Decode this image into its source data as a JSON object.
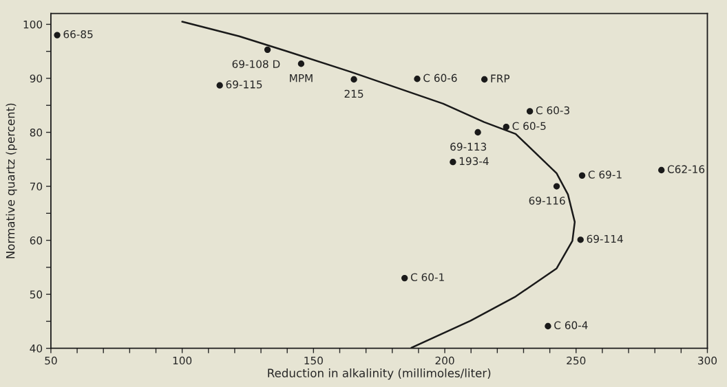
{
  "chart_data": {
    "type": "scatter",
    "xlabel": "Reduction in alkalinity (millimoles/liter)",
    "ylabel": "Normative quartz (percent)",
    "xlim": [
      50,
      300
    ],
    "ylim": [
      40,
      102
    ],
    "xticks": [
      50,
      {
        "value": 60,
        "label": null
      },
      {
        "value": 70,
        "label": null
      },
      {
        "value": 80,
        "label": null
      },
      {
        "value": 90,
        "label": null
      },
      100,
      {
        "value": 110,
        "label": null
      },
      {
        "value": 120,
        "label": null
      },
      {
        "value": 130,
        "label": null
      },
      {
        "value": 140,
        "label": null
      },
      150,
      {
        "value": 160,
        "label": null
      },
      {
        "value": 170,
        "label": null
      },
      {
        "value": 180,
        "label": null
      },
      {
        "value": 190,
        "label": null
      },
      200,
      {
        "value": 210,
        "label": null
      },
      {
        "value": 220,
        "label": null
      },
      {
        "value": 230,
        "label": null
      },
      {
        "value": 240,
        "label": null
      },
      250,
      {
        "value": 260,
        "label": null
      },
      {
        "value": 270,
        "label": null
      },
      {
        "value": 280,
        "label": null
      },
      {
        "value": 290,
        "label": null
      },
      300
    ],
    "yticks": [
      40,
      {
        "value": 45,
        "label": null
      },
      50,
      {
        "value": 55,
        "label": null
      },
      60,
      {
        "value": 65,
        "label": null
      },
      70,
      {
        "value": 75,
        "label": null
      },
      80,
      {
        "value": 85,
        "label": null
      },
      90,
      {
        "value": 95,
        "label": null
      },
      100
    ],
    "grid": false,
    "marker": "circle",
    "series": [
      {
        "color": "#1a1a1a",
        "x": [
          52.4,
          114.3,
          132.5,
          145.3,
          165.4,
          189.5,
          212.6,
          203.1,
          184.7,
          215.1,
          232.4,
          223.4,
          252.3,
          282.5,
          242.6,
          251.7,
          239.3
        ],
        "values": [
          98,
          88.7,
          95.3,
          92.7,
          89.8,
          89.9,
          80.0,
          74.5,
          53.0,
          89.8,
          83.9,
          81.0,
          72.0,
          73.0,
          70.0,
          60.1,
          44.1
        ]
      },
      {
        "type": "line",
        "color": "#1a1a1a",
        "marker": "none",
        "line_style": "solid",
        "x": [
          100,
          121.7,
          140,
          164.8,
          199.4,
          215,
          227,
          242.6,
          246.9,
          249.5,
          248.6,
          242.6,
          227,
          209.8,
          187.3
        ],
        "values": [
          100.5,
          97.8,
          95,
          91.1,
          85.3,
          81.9,
          79.7,
          72.4,
          68.5,
          63.4,
          59.9,
          54.8,
          49.6,
          45.1,
          40.1
        ]
      }
    ],
    "annotations": [
      {
        "text": "66-85",
        "x": 52.4,
        "y": 98
      },
      {
        "text": "69-115",
        "x": 114.3,
        "y": 88.7
      },
      {
        "text": "69-108 D",
        "x": 132.5,
        "y": 95.3
      },
      {
        "text": "MPM",
        "x": 145.3,
        "y": 92.7
      },
      {
        "text": "215",
        "x": 165.4,
        "y": 89.8
      },
      {
        "text": "C 60-6",
        "x": 189.5,
        "y": 89.9
      },
      {
        "text": "69-113",
        "x": 212.6,
        "y": 80.0
      },
      {
        "text": "193-4",
        "x": 203.1,
        "y": 74.5
      },
      {
        "text": "C 60-1",
        "x": 184.7,
        "y": 53.0
      },
      {
        "text": "FRP",
        "x": 215.1,
        "y": 89.8
      },
      {
        "text": "C 60-3",
        "x": 232.4,
        "y": 83.9
      },
      {
        "text": "C 60-5",
        "x": 223.4,
        "y": 81.0
      },
      {
        "text": "C 69-1",
        "x": 252.3,
        "y": 72.0
      },
      {
        "text": "C62-16",
        "x": 282.5,
        "y": 73.0
      },
      {
        "text": "69-116",
        "x": 242.6,
        "y": 70.0
      },
      {
        "text": "69-114",
        "x": 251.7,
        "y": 60.1
      },
      {
        "text": "C 60-4",
        "x": 239.3,
        "y": 44.1
      }
    ]
  }
}
